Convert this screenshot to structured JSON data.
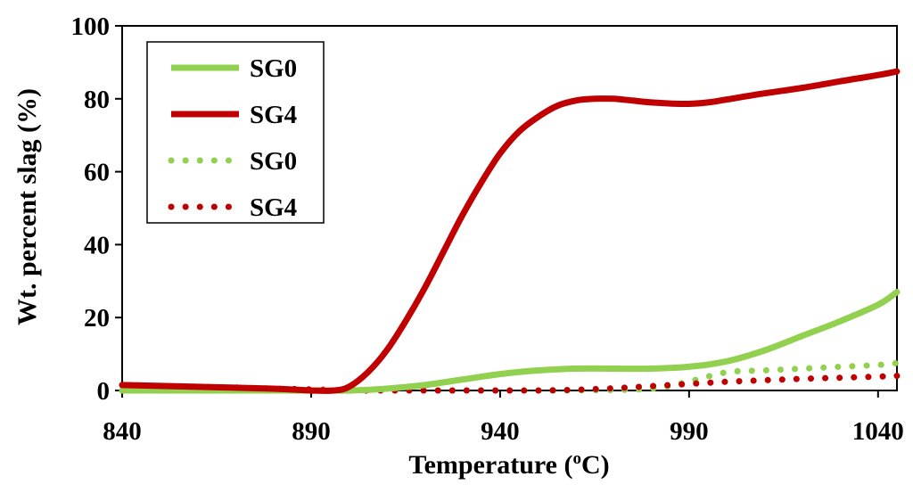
{
  "chart_data": {
    "type": "line",
    "title": "",
    "xlabel_main": "Temperature (",
    "xlabel_sup": "o",
    "xlabel_end": "C)",
    "ylabel": "Wt. percent slag (%)",
    "xlim": [
      840,
      1045
    ],
    "ylim": [
      0,
      100
    ],
    "xticks": [
      840,
      890,
      940,
      990,
      1040
    ],
    "yticks": [
      0,
      20,
      40,
      60,
      80,
      100
    ],
    "legend_position": "top-left",
    "series": [
      {
        "name": "SG0",
        "style": "solid",
        "color": "#92d050",
        "x": [
          840,
          880,
          900,
          910,
          920,
          930,
          940,
          950,
          960,
          970,
          980,
          990,
          1000,
          1010,
          1020,
          1030,
          1040,
          1045
        ],
        "y": [
          0,
          0,
          0,
          0.5,
          1.5,
          3,
          4.5,
          5.5,
          6,
          6,
          6,
          6.5,
          8,
          11,
          15,
          19,
          23.5,
          27
        ]
      },
      {
        "name": "SG4",
        "style": "solid",
        "color": "#c00000",
        "x": [
          840,
          860,
          880,
          890,
          896,
          900,
          905,
          910,
          915,
          920,
          925,
          930,
          935,
          940,
          945,
          950,
          955,
          960,
          965,
          970,
          975,
          980,
          985,
          990,
          995,
          1000,
          1010,
          1020,
          1030,
          1040,
          1045
        ],
        "y": [
          1.5,
          1,
          0.5,
          0,
          0,
          1,
          5,
          11,
          19,
          28,
          38,
          48,
          57,
          65,
          71,
          75,
          78,
          79.5,
          80,
          80,
          79.5,
          79,
          78.7,
          78.6,
          79,
          79.8,
          81.5,
          83,
          84.8,
          86.5,
          87.5
        ]
      },
      {
        "name": "SG0",
        "style": "dotted",
        "color": "#92d050",
        "x": [
          840,
          880,
          900,
          920,
          940,
          960,
          980,
          990,
          1000,
          1010,
          1020,
          1030,
          1040,
          1045
        ],
        "y": [
          0,
          0,
          0,
          0,
          0,
          0,
          0.5,
          2.5,
          5,
          5.5,
          6,
          6.5,
          7,
          7.5
        ]
      },
      {
        "name": "SG4",
        "style": "dotted",
        "color": "#c00000",
        "x": [
          840,
          850,
          860,
          870,
          880,
          890,
          900,
          910,
          920,
          930,
          940,
          950,
          960,
          970,
          980,
          990,
          1000,
          1010,
          1020,
          1030,
          1040,
          1045
        ],
        "y": [
          1.5,
          1.2,
          1,
          0.8,
          0.5,
          0.3,
          0,
          0,
          0,
          0,
          0,
          0,
          0.2,
          0.6,
          1.2,
          1.8,
          2.4,
          2.8,
          3.2,
          3.5,
          3.8,
          4
        ]
      }
    ]
  }
}
